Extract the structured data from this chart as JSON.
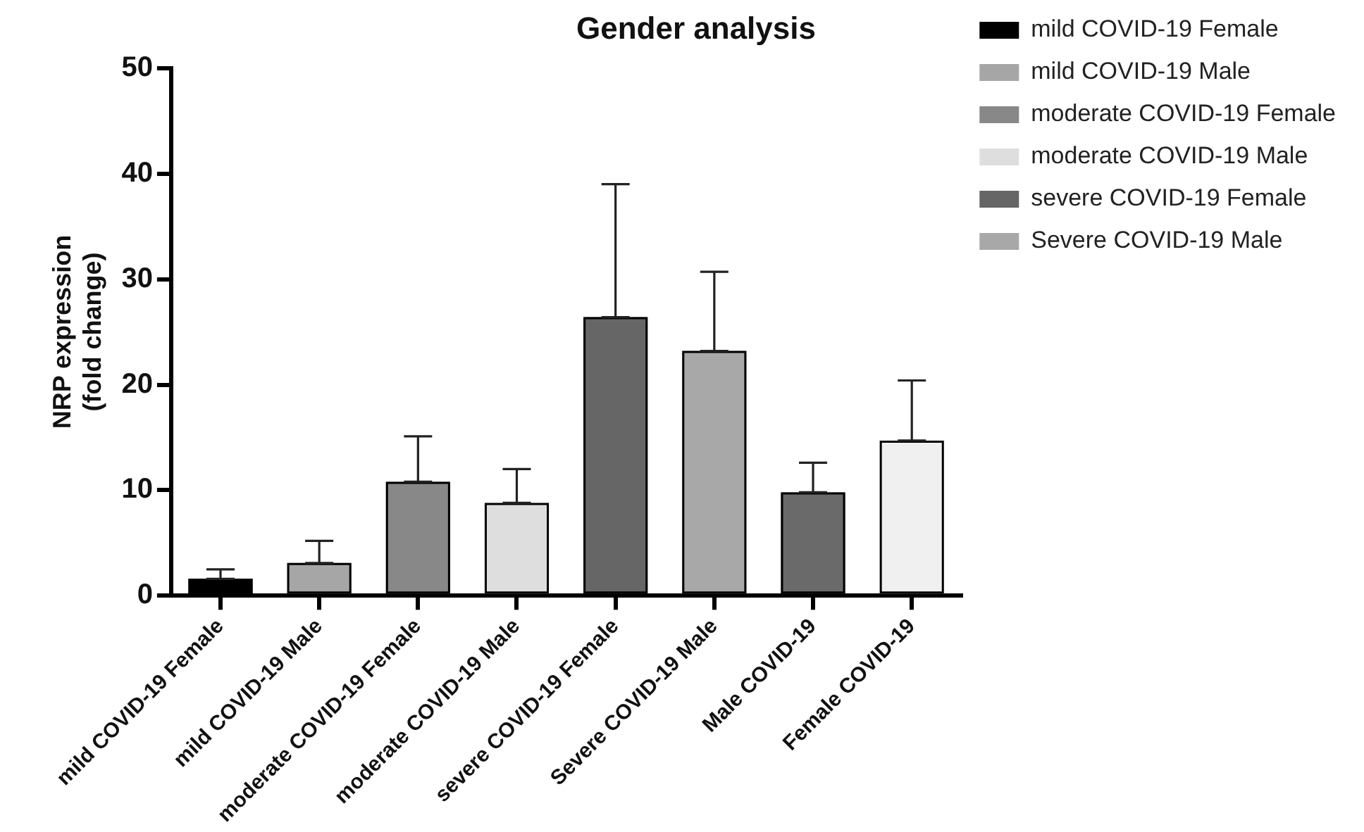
{
  "chart_data": {
    "type": "bar",
    "title": "Gender analysis",
    "ylabel": "NRP expression\n(fold change)",
    "categories": [
      "mild COVID-19 Female",
      "mild COVID-19 Male",
      "moderate COVID-19 Female",
      "moderate COVID-19 Male",
      "severe COVID-19 Female",
      "Severe COVID-19 Male",
      "Male COVID-19",
      "Female COVID-19"
    ],
    "series": [
      {
        "name": "mild COVID-19 Female",
        "color": "#000000",
        "values": [
          1.6,
          null,
          null,
          null,
          null,
          null,
          null,
          null
        ],
        "errors": [
          [
            1.6,
            2.5
          ],
          null,
          null,
          null,
          null,
          null,
          null,
          null
        ]
      },
      {
        "name": "mild COVID-19 Male",
        "color": "#a6a6a6",
        "values": [
          null,
          3.1,
          null,
          null,
          null,
          null,
          null,
          null
        ],
        "errors": [
          null,
          [
            3.1,
            5.2
          ],
          null,
          null,
          null,
          null,
          null,
          null
        ]
      },
      {
        "name": "moderate COVID-19 Female",
        "color": "#888888",
        "values": [
          null,
          null,
          10.8,
          null,
          null,
          null,
          null,
          null
        ],
        "errors": [
          null,
          null,
          [
            10.8,
            15.1
          ],
          null,
          null,
          null,
          null,
          null
        ]
      },
      {
        "name": "moderate COVID-19 Male",
        "color": "#dedede",
        "values": [
          null,
          null,
          null,
          8.8,
          null,
          null,
          null,
          null
        ],
        "errors": [
          null,
          null,
          null,
          [
            8.8,
            12.0
          ],
          null,
          null,
          null,
          null
        ]
      },
      {
        "name": "severe COVID-19 Female",
        "color": "#666666",
        "values": [
          null,
          null,
          null,
          null,
          26.4,
          null,
          null,
          null
        ],
        "errors": [
          null,
          null,
          null,
          null,
          [
            26.4,
            39.0
          ],
          null,
          null,
          null
        ]
      },
      {
        "name": "Severe COVID-19 Male",
        "color": "#a8a8a8",
        "values": [
          null,
          null,
          null,
          null,
          null,
          23.2,
          null,
          null
        ],
        "errors": [
          null,
          null,
          null,
          null,
          null,
          [
            23.2,
            30.7
          ],
          null,
          null
        ]
      },
      {
        "color": "#6a6a6a",
        "values": [
          null,
          null,
          null,
          null,
          null,
          null,
          9.8,
          null
        ],
        "errors": [
          null,
          null,
          null,
          null,
          null,
          null,
          [
            9.8,
            12.6
          ],
          null
        ]
      },
      {
        "color": "#f0f0f0",
        "values": [
          null,
          null,
          null,
          null,
          null,
          null,
          null,
          14.7
        ],
        "errors": [
          null,
          null,
          null,
          null,
          null,
          null,
          null,
          [
            14.7,
            20.4
          ]
        ]
      }
    ],
    "ylim": [
      0,
      50
    ],
    "yticks": [
      0,
      10,
      20,
      30,
      40,
      50
    ],
    "grid": false,
    "legend": "right"
  }
}
